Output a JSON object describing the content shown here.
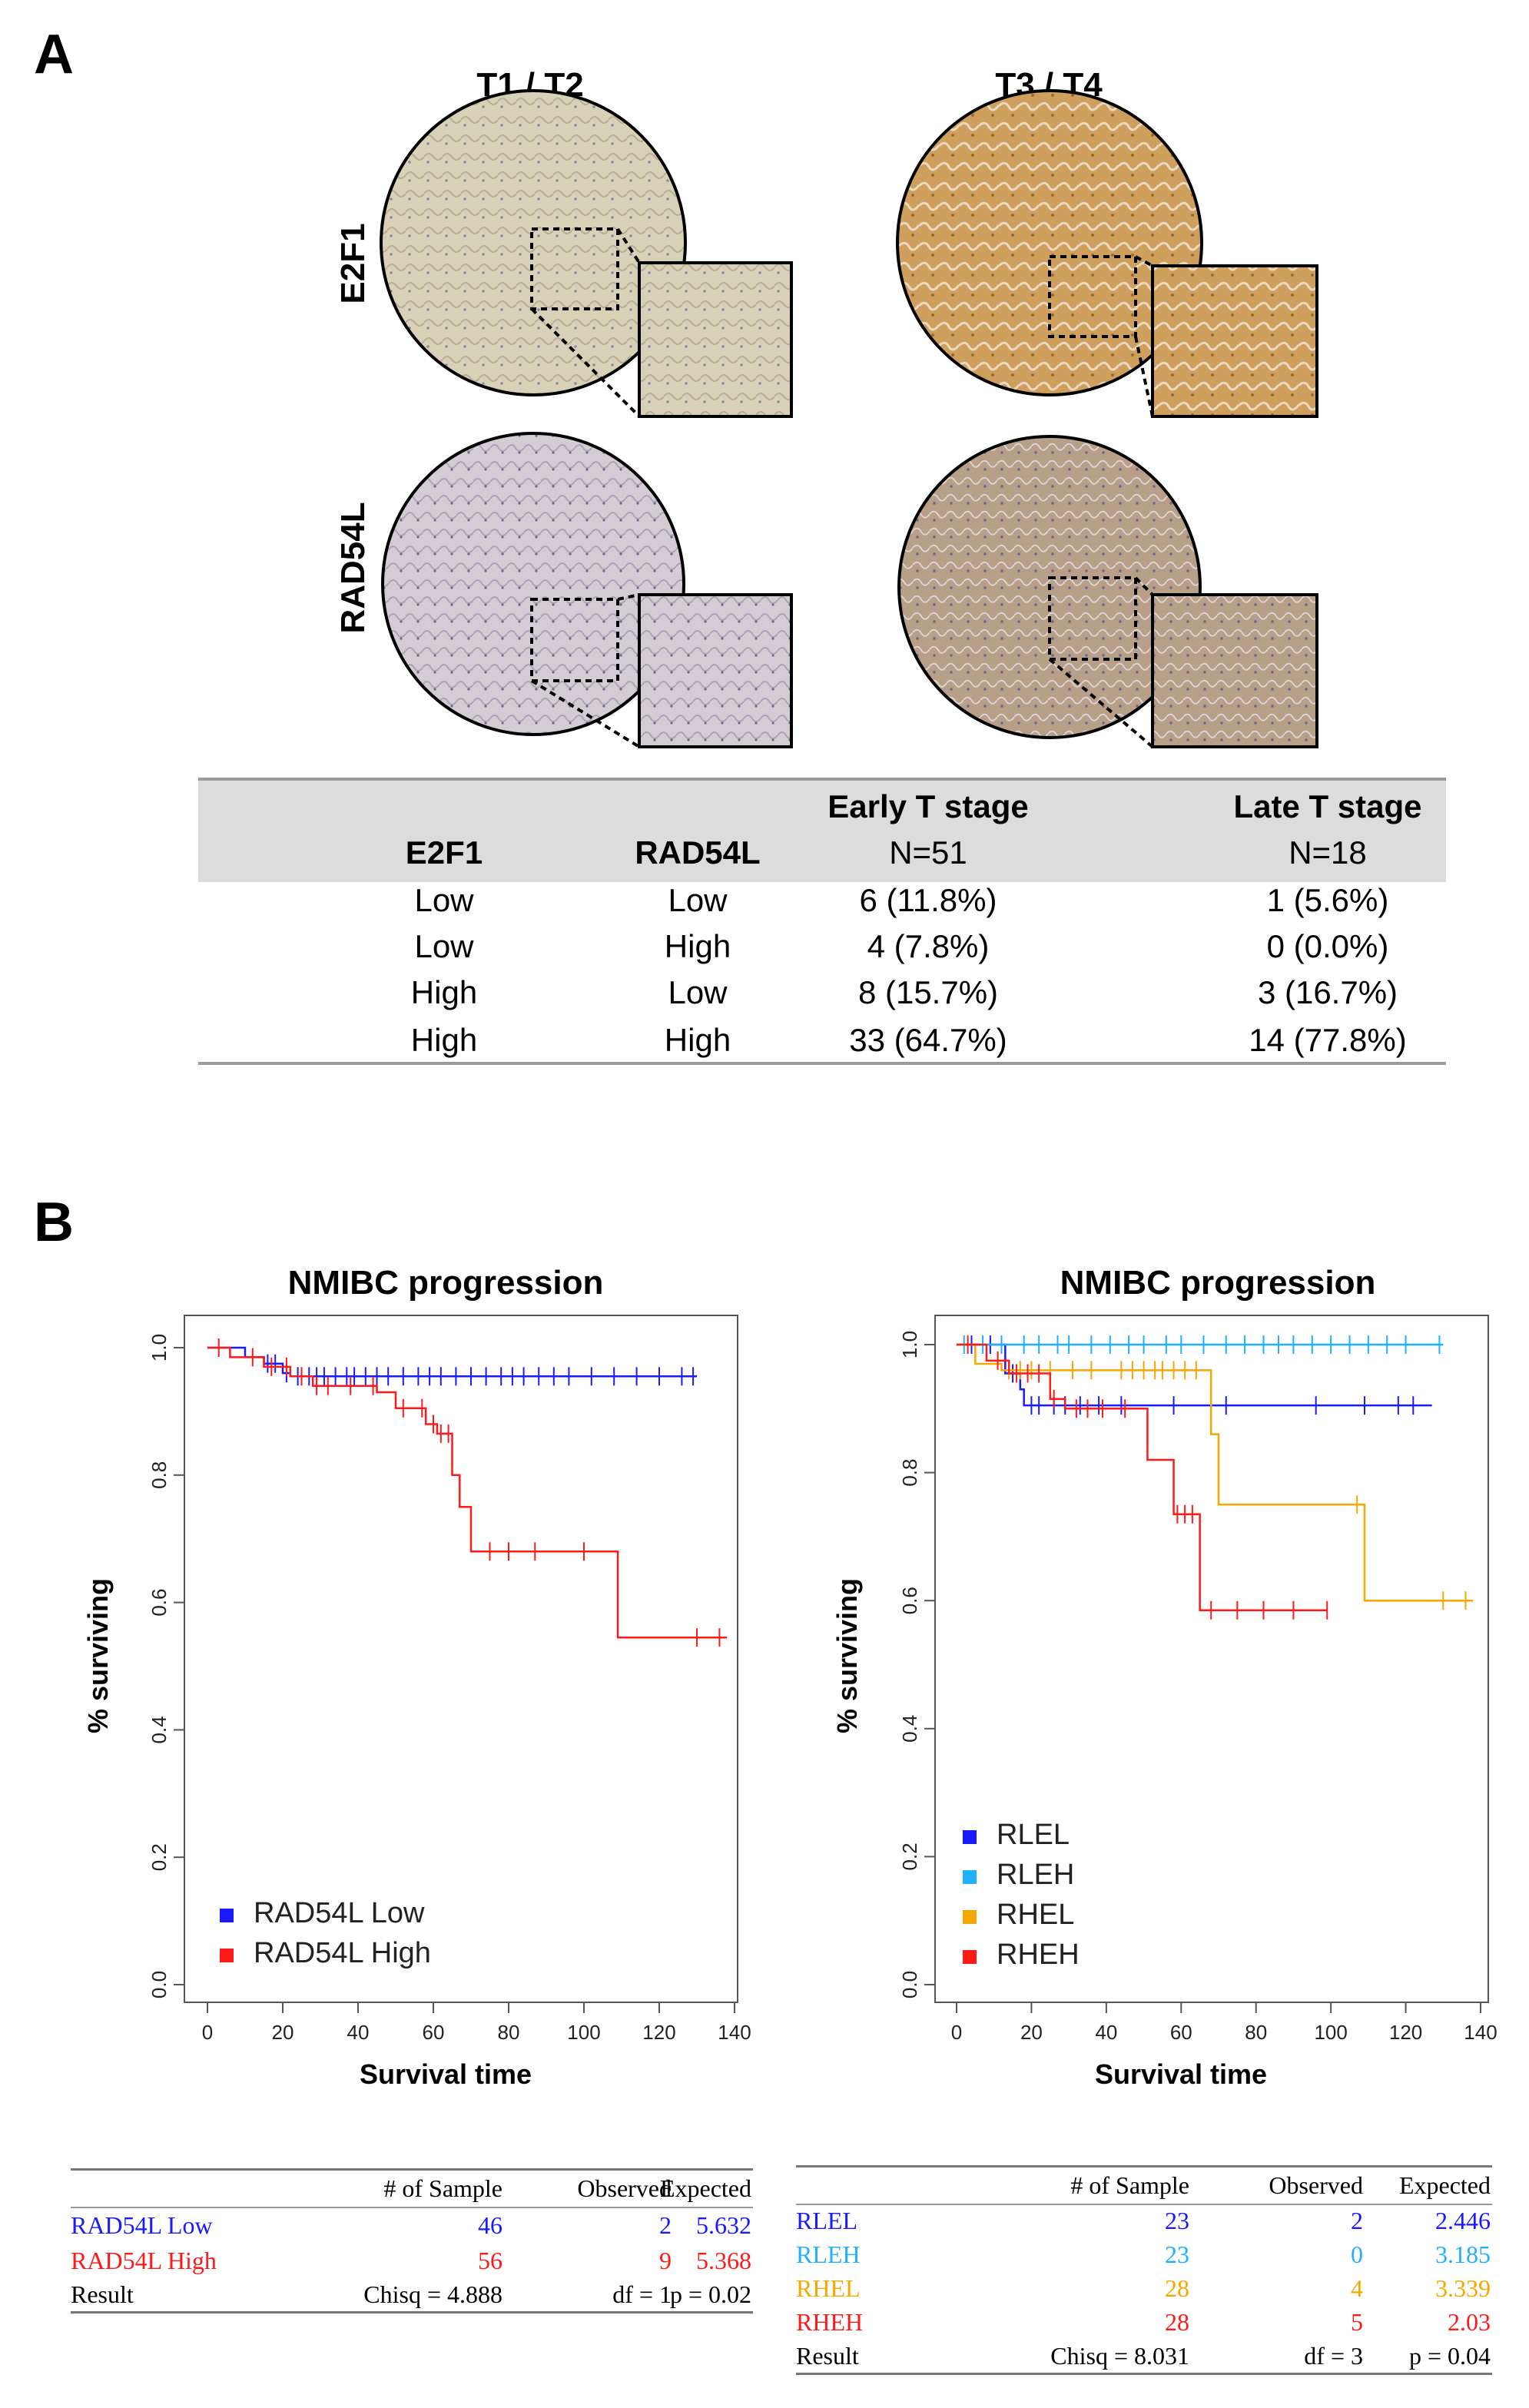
{
  "panelA": {
    "letter": "A",
    "col_headers": [
      "T1 / T2",
      "T3 / T4"
    ],
    "row_headers": [
      "E2F1",
      "RAD54L"
    ],
    "table": {
      "header_row1": [
        "",
        "",
        "Early T stage",
        "Late T stage"
      ],
      "header_row2": [
        "E2F1",
        "RAD54L",
        "N=51",
        "N=18"
      ],
      "rows": [
        [
          "Low",
          "Low",
          "6 (11.8%)",
          "1 (5.6%)"
        ],
        [
          "Low",
          "High",
          "4 (7.8%)",
          "0 (0.0%)"
        ],
        [
          "High",
          "Low",
          "8 (15.7%)",
          "3 (16.7%)"
        ],
        [
          "High",
          "High",
          "33 (64.7%)",
          "14 (77.8%)"
        ]
      ]
    }
  },
  "panelB": {
    "letter": "B",
    "left_stats": {
      "headers": [
        "",
        "# of Sample",
        "Observed",
        "Expected"
      ],
      "rows": [
        {
          "label": "RAD54L Low",
          "n": "46",
          "obs": "2",
          "exp": "5.632",
          "color": "#1a1aff"
        },
        {
          "label": "RAD54L High",
          "n": "56",
          "obs": "9",
          "exp": "5.368",
          "color": "#ff1a1a"
        }
      ],
      "result": {
        "label": "Result",
        "chisq": "Chisq = 4.888",
        "df": "df = 1",
        "p": "p = 0.02"
      }
    },
    "right_stats": {
      "headers": [
        "",
        "# of Sample",
        "Observed",
        "Expected"
      ],
      "rows": [
        {
          "label": "RLEL",
          "n": "23",
          "obs": "2",
          "exp": "2.446",
          "color": "#1a1aff"
        },
        {
          "label": "RLEH",
          "n": "23",
          "obs": "0",
          "exp": "3.185",
          "color": "#1fb0ff"
        },
        {
          "label": "RHEL",
          "n": "28",
          "obs": "4",
          "exp": "3.339",
          "color": "#f5a800"
        },
        {
          "label": "RHEH",
          "n": "28",
          "obs": "5",
          "exp": "2.03",
          "color": "#ff1a1a"
        }
      ],
      "result": {
        "label": "Result",
        "chisq": "Chisq = 8.031",
        "df": "df = 3",
        "p": "p = 0.04"
      }
    }
  },
  "chart_data": [
    {
      "type": "line",
      "subtype": "kaplan-meier",
      "title": "NMIBC progression",
      "xlabel": "Survival time",
      "ylabel": "% surviving",
      "xlim": [
        0,
        140
      ],
      "ylim": [
        0,
        1
      ],
      "xticks": [
        "0",
        "20",
        "40",
        "60",
        "80",
        "100",
        "120",
        "140"
      ],
      "yticks": [
        "0.0",
        "0.2",
        "0.4",
        "0.6",
        "0.8",
        "1.0"
      ],
      "legend_position": "bottom-left",
      "series": [
        {
          "name": "RAD54L Low",
          "color": "#1a1aff",
          "steps": [
            [
              0,
              1.0
            ],
            [
              10,
              0.985
            ],
            [
              15,
              0.975
            ],
            [
              20,
              0.96
            ],
            [
              22,
              0.955
            ],
            [
              130,
              0.955
            ]
          ],
          "censor": [
            16,
            18,
            21,
            24,
            27,
            29,
            31,
            34,
            37,
            39,
            42,
            45,
            48,
            52,
            56,
            59,
            62,
            66,
            70,
            74,
            78,
            81,
            84,
            88,
            92,
            96,
            102,
            108,
            114,
            120,
            126,
            129
          ]
        },
        {
          "name": "RAD54L High",
          "color": "#ff1a1a",
          "steps": [
            [
              0,
              1.0
            ],
            [
              6,
              0.985
            ],
            [
              15,
              0.97
            ],
            [
              22,
              0.955
            ],
            [
              28,
              0.94
            ],
            [
              45,
              0.93
            ],
            [
              50,
              0.905
            ],
            [
              58,
              0.88
            ],
            [
              61,
              0.865
            ],
            [
              65,
              0.8
            ],
            [
              67,
              0.75
            ],
            [
              70,
              0.68
            ],
            [
              108,
              0.68
            ],
            [
              109,
              0.545
            ],
            [
              138,
              0.545
            ]
          ],
          "censor": [
            3,
            12,
            17,
            21,
            25,
            29,
            32,
            38,
            44,
            52,
            57,
            60,
            62,
            64,
            75,
            80,
            87,
            100,
            130,
            136
          ]
        }
      ]
    },
    {
      "type": "line",
      "subtype": "kaplan-meier",
      "title": "NMIBC progression",
      "xlabel": "Survival time",
      "ylabel": "% surviving",
      "xlim": [
        0,
        140
      ],
      "ylim": [
        0,
        1
      ],
      "xticks": [
        "0",
        "20",
        "40",
        "60",
        "80",
        "100",
        "120",
        "140"
      ],
      "yticks": [
        "0.0",
        "0.2",
        "0.4",
        "0.6",
        "0.8",
        "1.0"
      ],
      "legend_position": "bottom-left",
      "series": [
        {
          "name": "RLEL",
          "color": "#1a1aff",
          "steps": [
            [
              0,
              1.0
            ],
            [
              13,
              0.955
            ],
            [
              17,
              0.93
            ],
            [
              18,
              0.905
            ],
            [
              127,
              0.905
            ]
          ],
          "censor": [
            4,
            9,
            15,
            20,
            22,
            26,
            29,
            33,
            38,
            44,
            58,
            72,
            96,
            109,
            118,
            122
          ]
        },
        {
          "name": "RLEH",
          "color": "#1fb0ff",
          "steps": [
            [
              0,
              1.0
            ],
            [
              130,
              1.0
            ]
          ],
          "censor": [
            2,
            7,
            12,
            18,
            22,
            27,
            30,
            36,
            41,
            46,
            50,
            56,
            60,
            66,
            72,
            77,
            82,
            86,
            90,
            95,
            100,
            105,
            110,
            115,
            120,
            129
          ]
        },
        {
          "name": "RHEL",
          "color": "#f5a800",
          "steps": [
            [
              0,
              1.0
            ],
            [
              5,
              0.97
            ],
            [
              12,
              0.96
            ],
            [
              67,
              0.96
            ],
            [
              68,
              0.86
            ],
            [
              70,
              0.75
            ],
            [
              108,
              0.75
            ],
            [
              109,
              0.6
            ],
            [
              138,
              0.6
            ]
          ],
          "censor": [
            14,
            17,
            20,
            25,
            31,
            36,
            44,
            47,
            50,
            53,
            55,
            58,
            61,
            64,
            107,
            130,
            136
          ]
        },
        {
          "name": "RHEH",
          "color": "#ff1a1a",
          "steps": [
            [
              0,
              1.0
            ],
            [
              8,
              0.975
            ],
            [
              14,
              0.955
            ],
            [
              25,
              0.915
            ],
            [
              29,
              0.9
            ],
            [
              50,
              0.9
            ],
            [
              51,
              0.82
            ],
            [
              58,
              0.735
            ],
            [
              65,
              0.585
            ],
            [
              99,
              0.585
            ]
          ],
          "censor": [
            3,
            11,
            16,
            19,
            22,
            26,
            32,
            35,
            39,
            45,
            59,
            61,
            63,
            68,
            75,
            82,
            90,
            99
          ]
        }
      ]
    }
  ]
}
